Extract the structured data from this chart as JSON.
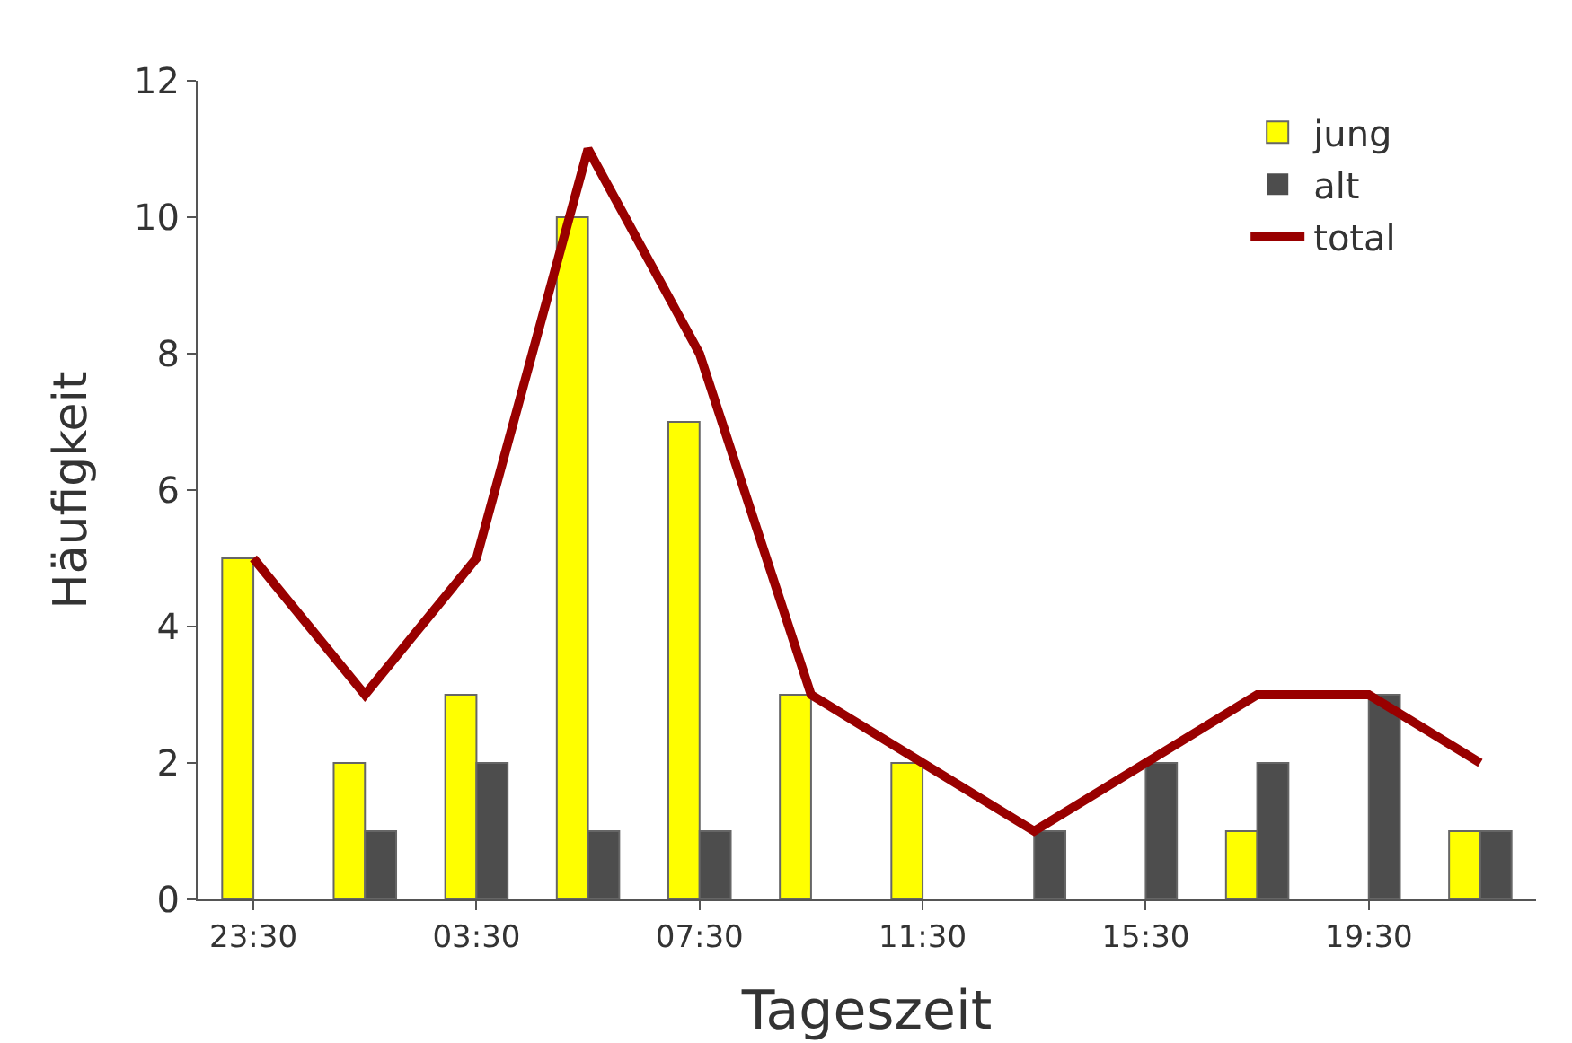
{
  "chart_data": {
    "type": "bar",
    "xlabel": "Tageszeit",
    "ylabel": "Häufigkeit",
    "categories": [
      "23:30",
      null,
      "03:30",
      null,
      "07:30",
      null,
      "11:30",
      null,
      "15:30",
      null,
      "19:30",
      null
    ],
    "series": [
      {
        "name": "jung",
        "color": "#ffff00",
        "values": [
          5,
          2,
          3,
          10,
          7,
          3,
          2,
          0,
          0,
          1,
          0,
          1
        ]
      },
      {
        "name": "alt",
        "color": "#4d4d4d",
        "values": [
          0,
          1,
          2,
          1,
          1,
          0,
          0,
          1,
          2,
          2,
          3,
          1
        ]
      },
      {
        "name": "total",
        "type": "line",
        "color": "#990000",
        "values": [
          5,
          3,
          5,
          11,
          8,
          3,
          2,
          1,
          2,
          3,
          3,
          2
        ]
      }
    ],
    "ylim": [
      0,
      12
    ],
    "yticks": [
      0,
      2,
      4,
      6,
      8,
      10,
      12
    ],
    "grid": false,
    "legend": "top right",
    "marker": "none",
    "line_style": "solid"
  }
}
